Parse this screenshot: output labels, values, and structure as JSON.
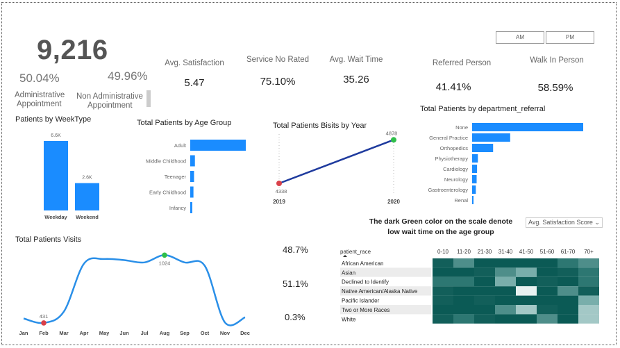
{
  "kpi": {
    "total": "9,216",
    "admin_pct": "50.04%",
    "admin_label_1": "Administrative",
    "admin_label_2": "Appointment",
    "nonadmin_pct": "49.96%",
    "nonadmin_label_1": "Non Administrative",
    "nonadmin_label_2": "Appointment",
    "avg_satisfaction_title": "Avg. Satisfaction",
    "avg_satisfaction_value": "5.47",
    "service_no_rated_title": "Service No Rated",
    "service_no_rated_value": "75.10%",
    "avg_wait_title": "Avg. Wait Time",
    "avg_wait_value": "35.26",
    "referred_title": "Referred Person",
    "referred_value": "41.41%",
    "walkin_title": "Walk In Person",
    "walkin_value": "58.59%"
  },
  "buttons": {
    "am": "AM",
    "pm": "PM"
  },
  "side_pcts": [
    "48.7%",
    "51.1%",
    "0.3%"
  ],
  "heatmap_note_1": "The dark Green color on the scale denote",
  "heatmap_note_2": "low wait time on the age group",
  "dropdown": "Avg. Satisfaction Score",
  "colors": {
    "bar": "#1a8cff",
    "line": "#1f3b9e",
    "visits": "#2a8fe8",
    "dot_low": "#d9414a",
    "dot_high": "#2fbf4a"
  },
  "chart_data": [
    {
      "type": "bar",
      "title": "Patients by WeekType",
      "categories": [
        "Weekday",
        "Weekend"
      ],
      "values": [
        6600,
        2600
      ],
      "data_labels": [
        "6.6K",
        "2.6K"
      ],
      "ylim": [
        0,
        6600
      ]
    },
    {
      "type": "bar",
      "orientation": "horizontal",
      "title": "Total Patients by Age Group",
      "categories": [
        "Adult",
        "Middle Childhood",
        "Teenager",
        "Early Childhood",
        "Infancy"
      ],
      "values": [
        3800,
        320,
        260,
        220,
        140
      ]
    },
    {
      "type": "line",
      "title": "Total Patients Bisits by Year",
      "x": [
        "2019",
        "2020"
      ],
      "values": [
        4338,
        4878
      ],
      "data_labels": [
        "4338",
        "4878"
      ]
    },
    {
      "type": "bar",
      "orientation": "horizontal",
      "title": "Total Patients by department_referral",
      "categories": [
        "None",
        "General Practice",
        "Orthopedics",
        "Physiotherapy",
        "Cardiology",
        "Neurology",
        "Gastroenterology",
        "Renal"
      ],
      "values": [
        5400,
        1850,
        1020,
        280,
        240,
        220,
        180,
        40
      ]
    },
    {
      "type": "line",
      "title": "Total Patients Visits",
      "x": [
        "Jan",
        "Feb",
        "Mar",
        "Apr",
        "May",
        "Jun",
        "Jul",
        "Aug",
        "Sep",
        "Oct",
        "Nov",
        "Dec"
      ],
      "values": [
        470,
        431,
        530,
        950,
        990,
        980,
        960,
        1024,
        960,
        930,
        435,
        480
      ],
      "data_labels": {
        "Feb": "431",
        "Aug": "1024"
      },
      "ylim": [
        400,
        1050
      ]
    },
    {
      "type": "heatmap",
      "row_header": "patient_race",
      "columns": [
        "0-10",
        "11-20",
        "21-30",
        "31-40",
        "41-50",
        "51-60",
        "61-70",
        "70+"
      ],
      "rows": [
        "African American",
        "Asian",
        "Declined to Identify",
        "Native American/Alaska Native",
        "Pacific Islander",
        "Two or More Races",
        "White"
      ],
      "values": [
        [
          2,
          4,
          1,
          1,
          1,
          1,
          3,
          4
        ],
        [
          1,
          1,
          2,
          4,
          5,
          1,
          2,
          3
        ],
        [
          3,
          3,
          1,
          5,
          1,
          2,
          1,
          3
        ],
        [
          2,
          1,
          1,
          1,
          7,
          1,
          4,
          2
        ],
        [
          2,
          1,
          2,
          1,
          1,
          1,
          1,
          5
        ],
        [
          1,
          1,
          1,
          4,
          6,
          2,
          1,
          6
        ],
        [
          2,
          3,
          2,
          1,
          1,
          4,
          1,
          6
        ]
      ]
    }
  ]
}
